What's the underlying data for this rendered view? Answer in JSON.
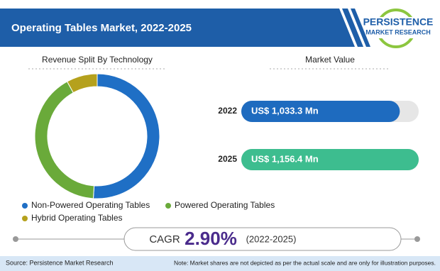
{
  "header": {
    "title": "Operating Tables Market, 2022-2025"
  },
  "logo": {
    "name": "PERSISTENCE",
    "tagline": "MARKET RESEARCH"
  },
  "chart_data": [
    {
      "type": "pie",
      "title": "Revenue Split By Technology",
      "categories": [
        "Non-Powered Operating Tables",
        "Powered Operating Tables",
        "Hybrid Operating Tables"
      ],
      "values": [
        51,
        41,
        8
      ],
      "colors": [
        "#1f6fc5",
        "#6aaa3a",
        "#b5a11d"
      ],
      "donut": true
    },
    {
      "type": "bar",
      "orientation": "horizontal",
      "title": "Market Value",
      "categories": [
        "2022",
        "2025"
      ],
      "values": [
        1033.3,
        1156.4
      ],
      "value_labels": [
        "US$ 1,033.3 Mn",
        "US$ 1,156.4 Mn"
      ],
      "colors": [
        "#1e6bbf",
        "#3dbd8f"
      ]
    }
  ],
  "cagr": {
    "label": "CAGR",
    "value": "2.90%",
    "period": "(2022-2025)"
  },
  "footer": {
    "source": "Source: Persistence Market Research",
    "note": "Note: Market shares are not depicted as per the actual scale and are only for illustration purposes."
  }
}
